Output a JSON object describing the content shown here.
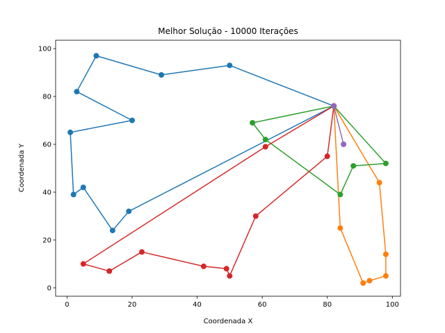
{
  "chart_data": {
    "type": "line",
    "title": "Melhor Solução - 10000 Iterações",
    "xlabel": "Coordenada X",
    "ylabel": "Coordenada Y",
    "xlim": [
      -3.5,
      102.5
    ],
    "ylim": [
      -3.5,
      103.5
    ],
    "xticks": [
      0,
      20,
      40,
      60,
      80,
      100
    ],
    "yticks": [
      0,
      20,
      40,
      60,
      80,
      100
    ],
    "grid": false,
    "series": [
      {
        "color": "#1f77b4",
        "x": [
          82,
          50,
          29,
          9,
          3,
          20,
          1,
          2,
          5,
          14,
          19,
          82
        ],
        "y": [
          76,
          93,
          89,
          97,
          82,
          70,
          65,
          39,
          42,
          24,
          32,
          76
        ]
      },
      {
        "color": "#ff7f0e",
        "x": [
          82,
          84,
          91,
          93,
          98,
          98,
          96,
          82
        ],
        "y": [
          76,
          25,
          2,
          3,
          5,
          14,
          44,
          76
        ]
      },
      {
        "color": "#2ca02c",
        "x": [
          82,
          57,
          61,
          84,
          88,
          98,
          82
        ],
        "y": [
          76,
          69,
          62,
          39,
          51,
          52,
          76
        ]
      },
      {
        "color": "#d62728",
        "x": [
          82,
          80,
          58,
          50,
          49,
          42,
          23,
          13,
          5,
          61,
          82
        ],
        "y": [
          76,
          55,
          30,
          5,
          8,
          9,
          15,
          7,
          10,
          59,
          76
        ]
      },
      {
        "color": "#9467bd",
        "x": [
          82,
          85,
          82
        ],
        "y": [
          76,
          60,
          76
        ]
      }
    ]
  }
}
